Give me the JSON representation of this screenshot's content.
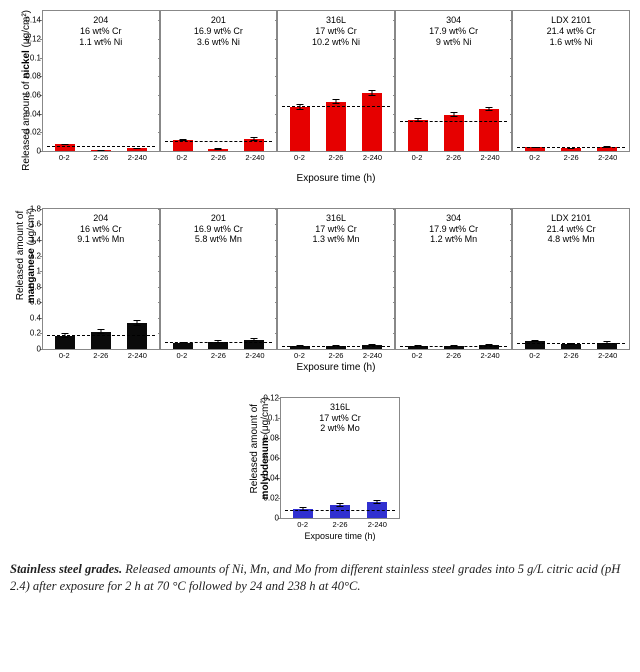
{
  "colors": {
    "nickel": "#e60000",
    "manganese": "#0a0a0a",
    "molybdenum": "#3030d0",
    "axis": "#888888",
    "grid": "#ffffff"
  },
  "x_categories": [
    "0-2",
    "2-26",
    "2-240"
  ],
  "rows": [
    {
      "id": "nickel",
      "ylabel": "Released amount of nickel (μg/cm²)",
      "ylabel_bold_word": "nickel",
      "xlabel": "Exposure time (h)",
      "ylim": [
        0,
        0.15
      ],
      "yticks": [
        0,
        0.02,
        0.04,
        0.06,
        0.08,
        0.1,
        0.12,
        0.14
      ],
      "bar_color": "#e60000",
      "panels": [
        {
          "title": "204",
          "label": "16 wt% Cr\n1.1 wt% Ni",
          "ref": 0.004,
          "values": [
            0.007,
            0.001,
            0.003
          ],
          "err": [
            0.0005,
            0.0005,
            0.0005
          ]
        },
        {
          "title": "201",
          "label": "16.9 wt% Cr\n3.6 wt% Ni",
          "ref": 0.01,
          "values": [
            0.012,
            0.002,
            0.013
          ],
          "err": [
            0.001,
            0.001,
            0.002
          ]
        },
        {
          "title": "316L",
          "label": "17 wt% Cr\n10.2 wt% Ni",
          "ref": 0.047,
          "values": [
            0.047,
            0.053,
            0.062
          ],
          "err": [
            0.003,
            0.003,
            0.003
          ]
        },
        {
          "title": "304",
          "label": "17.9 wt% Cr\n9 wt% Ni",
          "ref": 0.031,
          "values": [
            0.033,
            0.039,
            0.045
          ],
          "err": [
            0.002,
            0.003,
            0.002
          ]
        },
        {
          "title": "LDX 2101",
          "label": "21.4 wt% Cr\n1.6 wt% Ni",
          "ref": 0.003,
          "values": [
            0.004,
            0.003,
            0.004
          ],
          "err": [
            0.0005,
            0.0005,
            0.001
          ]
        }
      ]
    },
    {
      "id": "manganese",
      "ylabel": "Released amount of\nmanganese (μg/cm²)",
      "ylabel_bold_word": "manganese",
      "xlabel": "Exposure time (h)",
      "ylim": [
        0,
        1.8
      ],
      "yticks": [
        0,
        0.2,
        0.4,
        0.6,
        0.8,
        1,
        1.2,
        1.4,
        1.6,
        1.8
      ],
      "bar_color": "#0a0a0a",
      "panels": [
        {
          "title": "204",
          "label": "16 wt% Cr\n9.1 wt% Mn",
          "ref": 0.17,
          "values": [
            0.17,
            0.22,
            0.33
          ],
          "err": [
            0.03,
            0.03,
            0.04
          ]
        },
        {
          "title": "201",
          "label": "16.9 wt% Cr\n5.8 wt% Mn",
          "ref": 0.07,
          "values": [
            0.08,
            0.09,
            0.12
          ],
          "err": [
            0.01,
            0.02,
            0.02
          ]
        },
        {
          "title": "316L",
          "label": "17 wt% Cr\n1.3 wt% Mn",
          "ref": 0.03,
          "values": [
            0.04,
            0.04,
            0.05
          ],
          "err": [
            0.005,
            0.005,
            0.005
          ]
        },
        {
          "title": "304",
          "label": "17.9 wt% Cr\n1.2 wt% Mn",
          "ref": 0.02,
          "values": [
            0.04,
            0.04,
            0.05
          ],
          "err": [
            0.005,
            0.005,
            0.005
          ]
        },
        {
          "title": "LDX 2101",
          "label": "21.4 wt% Cr\n4.8 wt% Mn",
          "ref": 0.06,
          "values": [
            0.1,
            0.06,
            0.08
          ],
          "err": [
            0.01,
            0.01,
            0.02
          ]
        }
      ]
    }
  ],
  "single": {
    "id": "molybdenum",
    "ylabel": "Released amount of\nmolybdenum (μg/cm²)",
    "ylabel_bold_word": "molybdenum",
    "xlabel": "Exposure time (h)",
    "ylim": [
      0,
      0.12
    ],
    "yticks": [
      0,
      0.02,
      0.04,
      0.06,
      0.08,
      0.1,
      0.12
    ],
    "bar_color": "#3030d0",
    "panel": {
      "title": "316L",
      "label": "17 wt% Cr\n2 wt% Mo",
      "ref": 0.007,
      "values": [
        0.009,
        0.013,
        0.016
      ],
      "err": [
        0.002,
        0.002,
        0.002
      ]
    }
  },
  "caption": {
    "title": "Stainless steel grades.",
    "text": "Released amounts of Ni, Mn, and Mo from different stainless steel grades into 5 g/L citric acid (pH 2.4) after exposure for 2 h at 70 °C followed by 24 and 238 h at 40°C."
  }
}
